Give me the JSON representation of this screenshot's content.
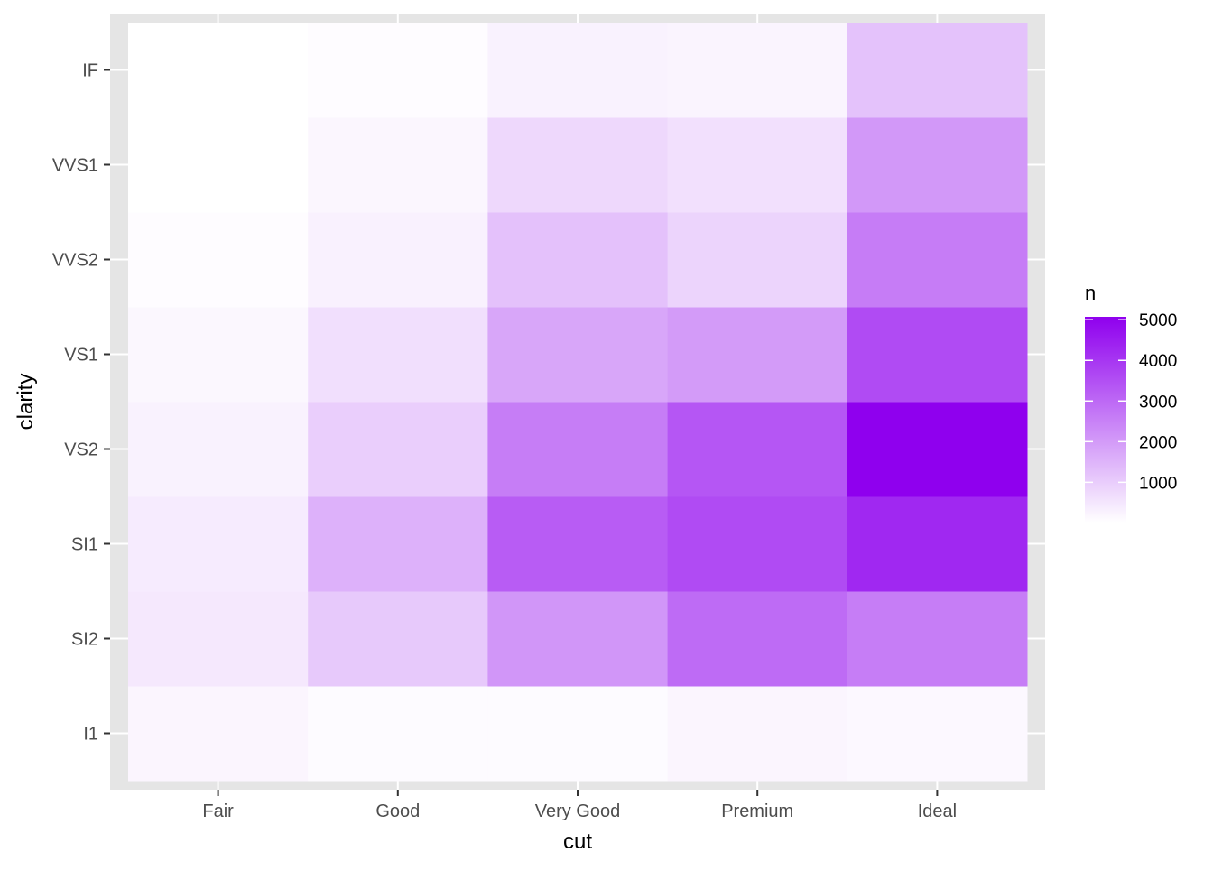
{
  "chart_data": {
    "type": "heatmap",
    "xlabel": "cut",
    "ylabel": "clarity",
    "x_categories": [
      "Fair",
      "Good",
      "Very Good",
      "Premium",
      "Ideal"
    ],
    "y_categories": [
      "I1",
      "SI2",
      "SI1",
      "VS2",
      "VS1",
      "VVS2",
      "VVS1",
      "IF"
    ],
    "values": [
      [
        210,
        466,
        408,
        261,
        170,
        69,
        17,
        9
      ],
      [
        96,
        1081,
        1560,
        978,
        648,
        286,
        186,
        71
      ],
      [
        84,
        2100,
        3240,
        2591,
        1775,
        1235,
        789,
        268
      ],
      [
        205,
        2949,
        3575,
        3357,
        1989,
        870,
        616,
        230
      ],
      [
        146,
        2598,
        4282,
        5071,
        3589,
        2606,
        2047,
        1212
      ]
    ],
    "legend": {
      "title": "n",
      "ticks": [
        1000,
        2000,
        3000,
        4000,
        5000
      ],
      "tick_labels": [
        "1000",
        "2000",
        "3000",
        "4000",
        "5000"
      ],
      "placement": "right"
    },
    "color_low": "#FFFFFF",
    "color_high": "#8F00EE",
    "panel_background": "#E5E5E5",
    "grid": true
  }
}
